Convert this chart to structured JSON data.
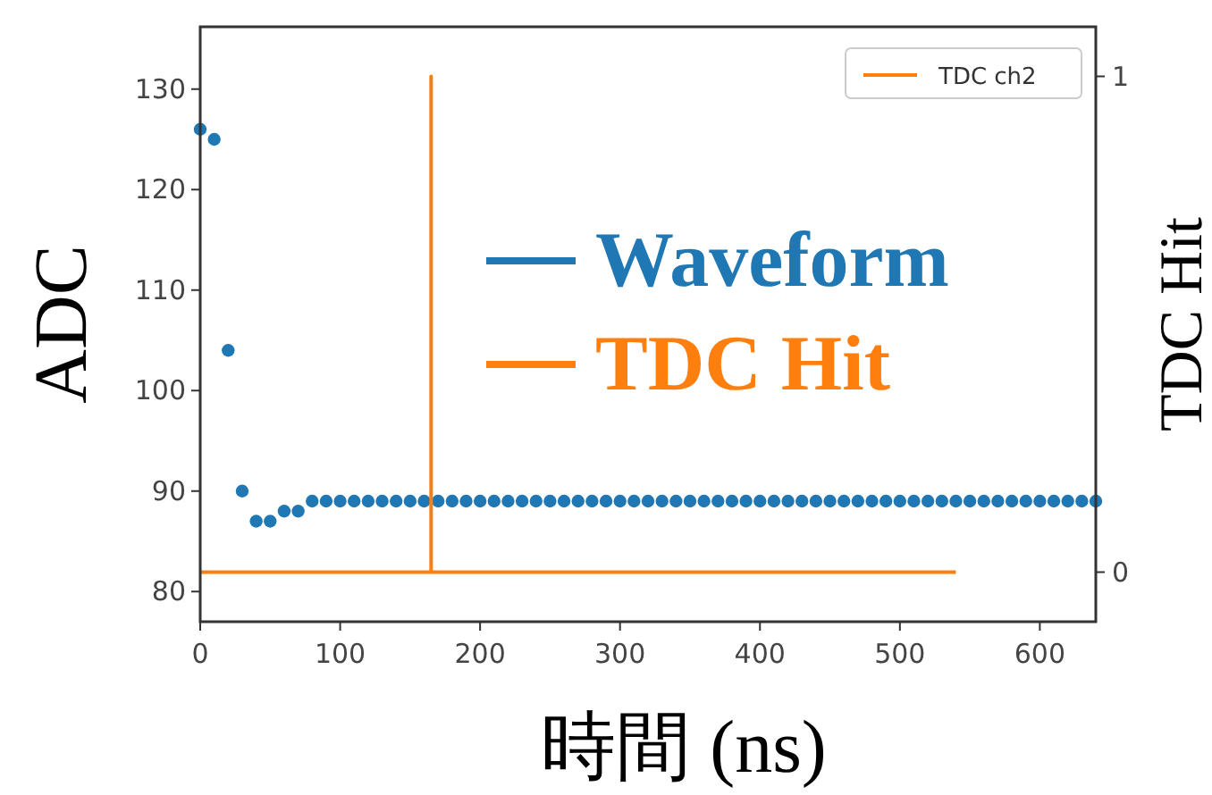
{
  "chart_data": {
    "type": "scatter",
    "xlabel": "時間 (ns)",
    "ylabel": "ADC",
    "y2label": "TDC Hit",
    "annotations": [
      "Waveform",
      "TDC Hit"
    ],
    "x": [
      0,
      10,
      20,
      30,
      40,
      50,
      60,
      70,
      80,
      90,
      100,
      110,
      120,
      130,
      140,
      150,
      160,
      170,
      180,
      190,
      200,
      210,
      220,
      230,
      240,
      250,
      260,
      270,
      280,
      290,
      300,
      310,
      320,
      330,
      340,
      350,
      360,
      370,
      380,
      390,
      400,
      410,
      420,
      430,
      440,
      450,
      460,
      470,
      480,
      490,
      500,
      510,
      520,
      530,
      540,
      550,
      560,
      570,
      580,
      590,
      600,
      610,
      620,
      630,
      640
    ],
    "series": [
      {
        "marker": "circle",
        "color": "#1f77b4",
        "values": [
          126,
          125,
          104,
          90,
          87,
          87,
          88,
          88,
          89,
          89,
          89,
          89,
          89,
          89,
          89,
          89,
          89,
          89,
          89,
          89,
          89,
          89,
          89,
          89,
          89,
          89,
          89,
          89,
          89,
          89,
          89,
          89,
          89,
          89,
          89,
          89,
          89,
          89,
          89,
          89,
          89,
          89,
          89,
          89,
          89,
          89,
          89,
          89,
          89,
          89,
          89,
          89,
          89,
          89,
          89,
          89,
          89,
          89,
          89,
          89,
          89,
          89,
          89,
          89,
          89
        ]
      },
      {
        "type": "line",
        "axis": "y2",
        "name": "TDC ch2",
        "color": "#ff7f0e",
        "x": [
          0,
          165,
          165,
          165,
          540
        ],
        "values": [
          0,
          0,
          1,
          0,
          0
        ]
      }
    ],
    "xlim": [
      0,
      640
    ],
    "xticks": [
      0,
      100,
      200,
      300,
      400,
      500,
      600
    ],
    "ylim": [
      77,
      136.2
    ],
    "yticks": [
      80,
      90,
      100,
      110,
      120,
      130
    ],
    "y2lim": [
      -0.1,
      1.1
    ],
    "y2ticks": [
      0,
      1
    ],
    "legend": "top right",
    "grid": false
  }
}
